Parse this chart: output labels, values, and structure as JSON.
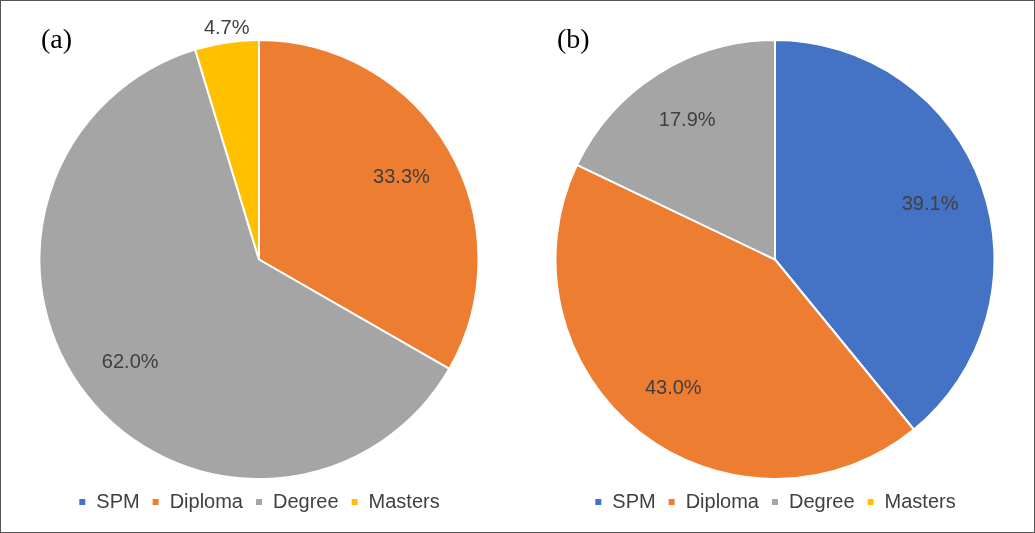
{
  "chart_data": [
    {
      "type": "pie",
      "title": "(a)",
      "categories": [
        "SPM",
        "Diploma",
        "Degree",
        "Masters"
      ],
      "values": [
        0,
        33.3,
        62.0,
        4.7
      ],
      "colors": [
        "#4472c4",
        "#ed7d31",
        "#a5a5a5",
        "#ffc000"
      ],
      "value_labels": [
        null,
        "33.3%",
        "62.0%",
        "4.7%"
      ],
      "legend": "bottom"
    },
    {
      "type": "pie",
      "title": "(b)",
      "categories": [
        "SPM",
        "Diploma",
        "Degree",
        "Masters"
      ],
      "values": [
        39.1,
        43.0,
        17.9,
        0
      ],
      "colors": [
        "#4472c4",
        "#ed7d31",
        "#a5a5a5",
        "#ffc000"
      ],
      "value_labels": [
        "39.1%",
        "43.0%",
        "17.9%",
        null
      ],
      "legend": "bottom"
    }
  ]
}
